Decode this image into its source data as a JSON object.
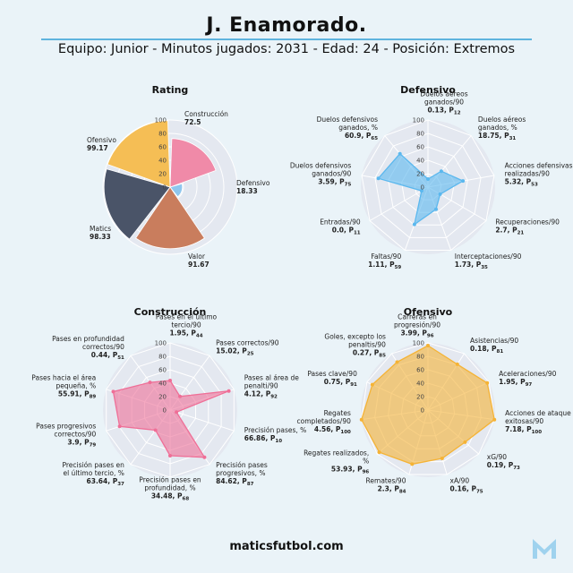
{
  "header": {
    "title": "J. Enamorado.",
    "subtitle": "Equipo: Junior - Minutos jugados: 2031 - Edad: 24 - Posición: Extremos"
  },
  "footer": {
    "site": "maticsfutbol.com",
    "logo": "matics-m-logo"
  },
  "colors": {
    "rating": [
      "#f08aa8",
      "#8ec6ee",
      "#c97d5d",
      "#4a5468",
      "#f5be55"
    ],
    "defensivo": "#5bb8ee",
    "construccion": "#ef6f97",
    "ofensivo": "#f5b335",
    "grid": "#ffffff",
    "panel_bg": "#e4e8f0"
  },
  "chart_data": [
    {
      "type": "polar-bar",
      "title": "Rating",
      "rlim": [
        0,
        100
      ],
      "ticks": [
        "0",
        "20",
        "40",
        "60",
        "80",
        "100"
      ],
      "categories": [
        "Construcción",
        "Defensivo",
        "Valor",
        "Matics",
        "Ofensivo"
      ],
      "values": [
        72.5,
        18.33,
        91.67,
        98.33,
        99.17
      ],
      "value_labels": [
        "72.5",
        "18.33",
        "91.67",
        "98.33",
        "99.17"
      ]
    },
    {
      "type": "radar",
      "title": "Defensivo",
      "rlim": [
        0,
        100
      ],
      "ticks": [
        "0",
        "20",
        "40",
        "60",
        "80",
        "100"
      ],
      "axes": [
        {
          "label": [
            "Duelos aéreos",
            "ganados/90"
          ],
          "value": "0.13, P",
          "pct": 12
        },
        {
          "label": [
            "Duelos aéreos",
            "ganados, %"
          ],
          "value": "18.75, P",
          "pct": 31
        },
        {
          "label": [
            "Acciones defensivas",
            "realizadas/90"
          ],
          "value": "5.32, P",
          "pct": 53
        },
        {
          "label": [
            "Recuperaciones/90"
          ],
          "value": "2.7, P",
          "pct": 21
        },
        {
          "label": [
            "Interceptaciones/90"
          ],
          "value": "1.73, P",
          "pct": 35
        },
        {
          "label": [
            "Faltas/90"
          ],
          "value": "1.11, P",
          "pct": 59
        },
        {
          "label": [
            "Entradas/90"
          ],
          "value": "0.0, P",
          "pct": 11
        },
        {
          "label": [
            "Duelos defensivos",
            "ganados/90"
          ],
          "value": "3.59, P",
          "pct": 75
        },
        {
          "label": [
            "Duelos defensivos",
            "ganados, %"
          ],
          "value": "60.9, P",
          "pct": 65
        }
      ]
    },
    {
      "type": "radar",
      "title": "Construcción",
      "rlim": [
        0,
        100
      ],
      "ticks": [
        "0",
        "20",
        "40",
        "60",
        "80",
        "100"
      ],
      "axes": [
        {
          "label": [
            "Pases en el último",
            "tercio/90"
          ],
          "value": "1.95, P",
          "pct": 44
        },
        {
          "label": [
            "Pases correctos/90"
          ],
          "value": "15.02, P",
          "pct": 25
        },
        {
          "label": [
            "Pases al área de",
            "penalti/90"
          ],
          "value": "4.12, P",
          "pct": 92
        },
        {
          "label": [
            "Precisión pases, %"
          ],
          "value": "66.86, P",
          "pct": 10
        },
        {
          "label": [
            "Precisión pases",
            "progresivos, %"
          ],
          "value": "84.62, P",
          "pct": 87
        },
        {
          "label": [
            "Precisión pases en",
            "profundidad, %"
          ],
          "value": "34.48, P",
          "pct": 68
        },
        {
          "label": [
            "Precisión pases en",
            "el último tercio, %"
          ],
          "value": "63.64, P",
          "pct": 37
        },
        {
          "label": [
            "Pases progresivos",
            "correctos/90"
          ],
          "value": "3.9, P",
          "pct": 79
        },
        {
          "label": [
            "Pases hacia el área",
            "pequeña, %"
          ],
          "value": "55.91, P",
          "pct": 89
        },
        {
          "label": [
            "Pases en profundidad",
            "correctos/90"
          ],
          "value": "0.44, P",
          "pct": 51
        }
      ]
    },
    {
      "type": "radar",
      "title": "Ofensivo",
      "rlim": [
        0,
        100
      ],
      "ticks": [
        "0",
        "20",
        "40",
        "60",
        "80",
        "100"
      ],
      "axes": [
        {
          "label": [
            "Carreras en",
            "progresión/90"
          ],
          "value": "3.99, P",
          "pct": 96
        },
        {
          "label": [
            "Asistencias/90"
          ],
          "value": "0.18, P",
          "pct": 81
        },
        {
          "label": [
            "Aceleraciones/90"
          ],
          "value": "1.95, P",
          "pct": 97
        },
        {
          "label": [
            "Acciones de ataque",
            "exitosas/90"
          ],
          "value": "7.18, P",
          "pct": 100
        },
        {
          "label": [
            "xG/90"
          ],
          "value": "0.19, P",
          "pct": 73
        },
        {
          "label": [
            "xA/90"
          ],
          "value": "0.16, P",
          "pct": 75
        },
        {
          "label": [
            "Remates/90"
          ],
          "value": "2.3, P",
          "pct": 84
        },
        {
          "label": [
            "Regates realizados,",
            "%"
          ],
          "value": "53.93, P",
          "pct": 96
        },
        {
          "label": [
            "Regates",
            "completados/90"
          ],
          "value": "4.56, P",
          "pct": 100
        },
        {
          "label": [
            "Pases clave/90"
          ],
          "value": "0.75, P",
          "pct": 91
        },
        {
          "label": [
            "Goles, excepto los",
            "penaltis/90"
          ],
          "value": "0.27, P",
          "pct": 85
        }
      ]
    }
  ]
}
